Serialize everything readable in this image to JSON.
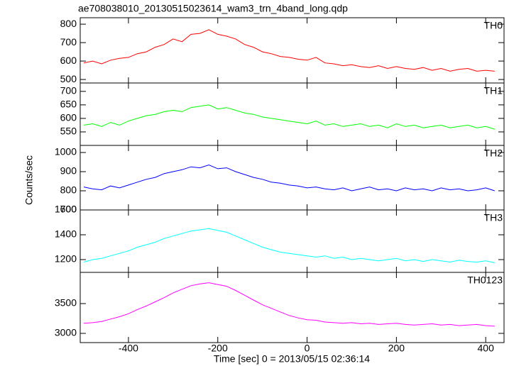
{
  "chart_data": {
    "type": "line",
    "title": "ae708038010_20130515023614_wam3_trn_4band_long.qdp",
    "xlabel": "Time [sec] 0 = 2013/05/15 02:36:14",
    "ylabel": "Counts/sec",
    "xlim": [
      -508,
      441
    ],
    "xticks": [
      -400,
      -200,
      0,
      200,
      400
    ],
    "x": [
      -500,
      -480,
      -460,
      -440,
      -420,
      -400,
      -380,
      -360,
      -340,
      -320,
      -300,
      -280,
      -260,
      -240,
      -220,
      -200,
      -180,
      -160,
      -140,
      -120,
      -100,
      -80,
      -60,
      -40,
      -20,
      0,
      20,
      40,
      60,
      80,
      100,
      120,
      140,
      160,
      180,
      200,
      220,
      240,
      260,
      280,
      300,
      320,
      340,
      360,
      380,
      400,
      420
    ],
    "series": [
      {
        "name": "TH0",
        "color": "#ff0000",
        "ylim": [
          481,
          835
        ],
        "yticks": [
          500,
          600,
          700,
          800
        ],
        "values": [
          590,
          600,
          585,
          605,
          615,
          620,
          640,
          650,
          675,
          690,
          720,
          705,
          745,
          750,
          770,
          745,
          735,
          720,
          690,
          675,
          650,
          640,
          625,
          620,
          610,
          605,
          620,
          590,
          585,
          575,
          580,
          570,
          565,
          575,
          560,
          570,
          560,
          555,
          565,
          550,
          560,
          545,
          555,
          560,
          545,
          550,
          545
        ]
      },
      {
        "name": "TH1",
        "color": "#00ff00",
        "ylim": [
          500,
          731
        ],
        "yticks": [
          550,
          600,
          650,
          700
        ],
        "values": [
          575,
          580,
          570,
          585,
          575,
          590,
          600,
          610,
          615,
          625,
          630,
          625,
          640,
          645,
          650,
          635,
          640,
          630,
          620,
          615,
          605,
          600,
          595,
          590,
          585,
          580,
          590,
          575,
          580,
          570,
          575,
          580,
          570,
          575,
          565,
          580,
          570,
          575,
          565,
          570,
          575,
          565,
          570,
          575,
          565,
          570,
          560
        ]
      },
      {
        "name": "TH2",
        "color": "#0000ff",
        "ylim": [
          700,
          1037
        ],
        "yticks": [
          700,
          800,
          900,
          1000
        ],
        "values": [
          820,
          810,
          805,
          825,
          815,
          830,
          845,
          860,
          870,
          890,
          900,
          910,
          925,
          920,
          935,
          915,
          920,
          900,
          885,
          870,
          860,
          845,
          840,
          830,
          825,
          815,
          820,
          810,
          805,
          815,
          800,
          810,
          820,
          805,
          810,
          800,
          815,
          805,
          810,
          800,
          815,
          805,
          810,
          800,
          805,
          815,
          800
        ]
      },
      {
        "name": "TH3",
        "color": "#00ffff",
        "ylim": [
          1097,
          1600
        ],
        "yticks": [
          1200,
          1400,
          1600
        ],
        "values": [
          1180,
          1200,
          1210,
          1230,
          1250,
          1270,
          1300,
          1320,
          1340,
          1370,
          1390,
          1410,
          1430,
          1440,
          1450,
          1435,
          1420,
          1390,
          1360,
          1330,
          1300,
          1280,
          1260,
          1250,
          1240,
          1230,
          1220,
          1230,
          1210,
          1220,
          1200,
          1210,
          1200,
          1190,
          1200,
          1210,
          1190,
          1200,
          1185,
          1200,
          1190,
          1180,
          1195,
          1185,
          1180,
          1190,
          1175
        ]
      },
      {
        "name": "TH0123",
        "color": "#ff00ff",
        "ylim": [
          2845,
          4024
        ],
        "yticks": [
          3000,
          3500
        ],
        "values": [
          3170,
          3180,
          3200,
          3240,
          3280,
          3330,
          3400,
          3460,
          3530,
          3600,
          3680,
          3740,
          3800,
          3830,
          3850,
          3820,
          3790,
          3720,
          3640,
          3560,
          3480,
          3420,
          3360,
          3300,
          3260,
          3230,
          3220,
          3190,
          3180,
          3170,
          3180,
          3160,
          3170,
          3150,
          3160,
          3170,
          3150,
          3140,
          3150,
          3160,
          3140,
          3150,
          3130,
          3140,
          3150,
          3130,
          3120
        ]
      }
    ]
  }
}
